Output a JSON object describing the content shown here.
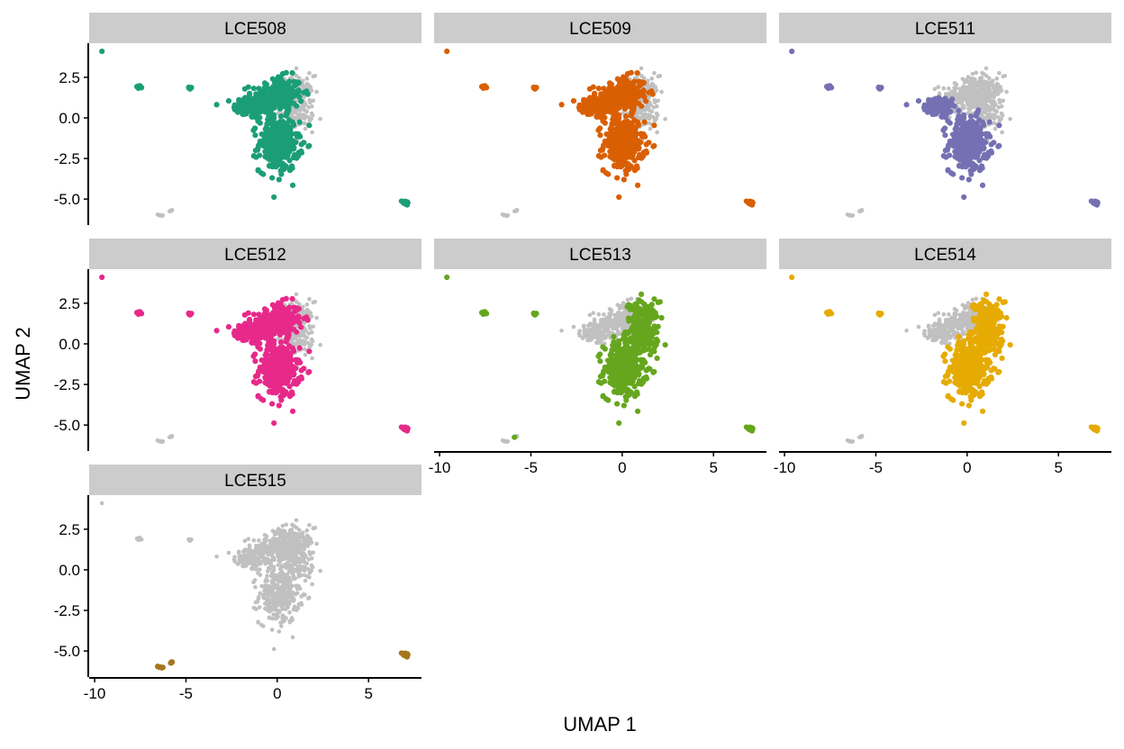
{
  "chart_data": {
    "type": "scatter",
    "title": "",
    "xlabel": "UMAP 1",
    "ylabel": "UMAP 2",
    "xlim": [
      -10.3,
      7.9
    ],
    "ylim": [
      -6.6,
      4.6
    ],
    "x_ticks": [
      -10,
      -5,
      0,
      5
    ],
    "x_tick_labels": [
      "-10",
      "-5",
      "0",
      "5"
    ],
    "y_ticks": [
      2.5,
      0.0,
      -2.5,
      -5.0
    ],
    "y_tick_labels": [
      "2.5",
      "0.0",
      "-2.5",
      "-5.0"
    ],
    "background_point_color": "#c0c0c0",
    "grid": false,
    "legend": "none",
    "panels": [
      {
        "label": "LCE508",
        "color": "#1b9e77",
        "highlight": [
          "isolated",
          "left_pair",
          "mid_pair",
          "main_left",
          "main_top",
          "main_lower",
          "right_island"
        ]
      },
      {
        "label": "LCE509",
        "color": "#d95f02",
        "highlight": [
          "isolated",
          "left_pair",
          "mid_pair",
          "main_left",
          "main_top",
          "main_lower",
          "right_island"
        ]
      },
      {
        "label": "LCE511",
        "color": "#7570b3",
        "highlight": [
          "isolated",
          "left_pair",
          "mid_pair",
          "main_left",
          "main_lower",
          "right_island"
        ]
      },
      {
        "label": "LCE512",
        "color": "#e7298a",
        "highlight": [
          "isolated",
          "left_pair",
          "mid_pair",
          "main_left",
          "main_top",
          "main_lower",
          "right_island"
        ]
      },
      {
        "label": "LCE513",
        "color": "#66a61e",
        "highlight": [
          "isolated",
          "left_pair",
          "mid_pair",
          "main_right",
          "main_lower",
          "right_island",
          "bottom_small"
        ]
      },
      {
        "label": "LCE514",
        "color": "#e6ab02",
        "highlight": [
          "isolated",
          "left_pair",
          "mid_pair",
          "main_right",
          "main_lower",
          "right_island"
        ]
      },
      {
        "label": "LCE515",
        "color": "#a6761d",
        "highlight": [
          "bottom_cluster",
          "right_island"
        ]
      }
    ]
  }
}
